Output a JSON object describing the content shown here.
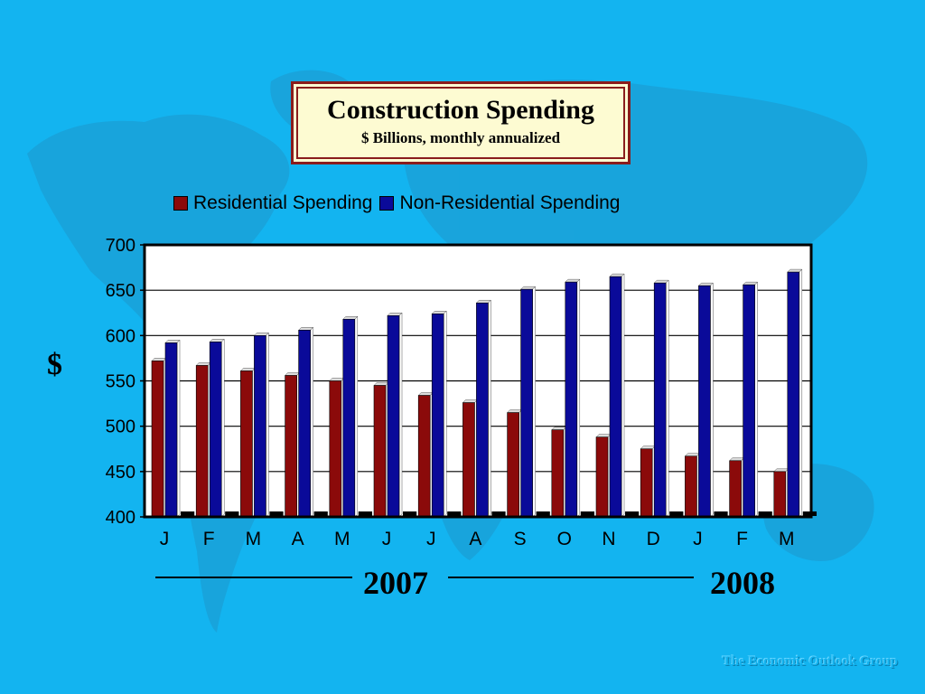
{
  "slide": {
    "title": "Construction Spending",
    "subtitle": "$ Billions, monthly annualized",
    "y_unit": "$",
    "year_1": "2007",
    "year_2": "2008",
    "footer": "The Economic Outlook Group",
    "background_color": "#13b4f0"
  },
  "chart_data": {
    "type": "bar",
    "title": "Construction Spending",
    "subtitle": "$ Billions, monthly annualized",
    "ylabel": "$",
    "xlabel": "",
    "ylim": [
      400,
      700
    ],
    "yticks": [
      400,
      450,
      500,
      550,
      600,
      650,
      700
    ],
    "grid": true,
    "legend_position": "top",
    "categories": [
      "J",
      "F",
      "M",
      "A",
      "M",
      "J",
      "J",
      "A",
      "S",
      "O",
      "N",
      "D",
      "J",
      "F",
      "M"
    ],
    "series": [
      {
        "name": "Residential Spending",
        "color": "#8b0a0a",
        "values": [
          572,
          567,
          561,
          556,
          550,
          545,
          534,
          526,
          515,
          496,
          488,
          475,
          467,
          462,
          450
        ]
      },
      {
        "name": "Non-Residential Spending",
        "color": "#0a0a99",
        "values": [
          592,
          593,
          600,
          606,
          618,
          622,
          624,
          636,
          651,
          659,
          665,
          658,
          655,
          656,
          670
        ]
      }
    ]
  }
}
